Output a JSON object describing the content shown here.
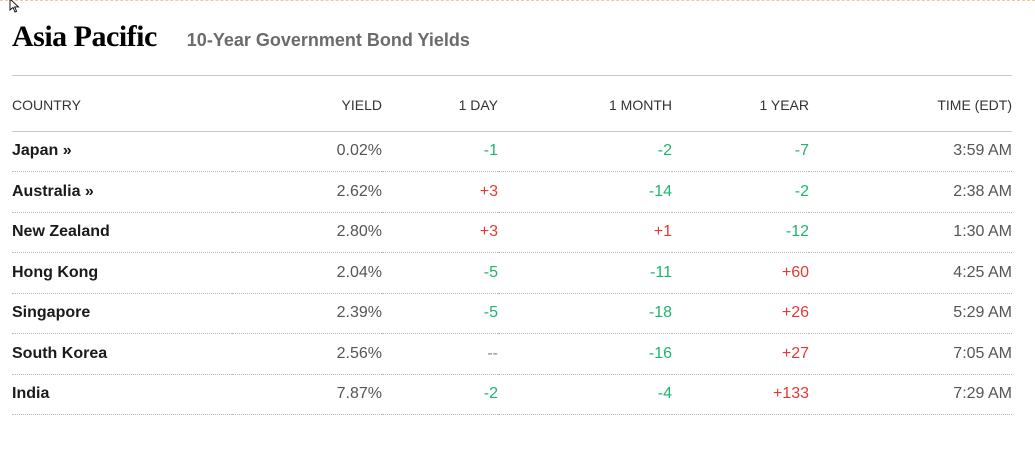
{
  "header": {
    "title": "Asia Pacific",
    "subtitle": "10-Year Government Bond Yields"
  },
  "table": {
    "columns": [
      "COUNTRY",
      "YIELD",
      "1 DAY",
      "1 MONTH",
      "1 YEAR",
      "TIME (EDT)"
    ],
    "rows": [
      {
        "country": "Japan »",
        "yield": "0.02%",
        "day": "-1",
        "month": "-2",
        "year": "-7",
        "time": "3:59 AM"
      },
      {
        "country": "Australia »",
        "yield": "2.62%",
        "day": "+3",
        "month": "-14",
        "year": "-2",
        "time": "2:38 AM"
      },
      {
        "country": "New Zealand",
        "yield": "2.80%",
        "day": "+3",
        "month": "+1",
        "year": "-12",
        "time": "1:30 AM"
      },
      {
        "country": "Hong Kong",
        "yield": "2.04%",
        "day": "-5",
        "month": "-11",
        "year": "+60",
        "time": "4:25 AM"
      },
      {
        "country": "Singapore",
        "yield": "2.39%",
        "day": "-5",
        "month": "-18",
        "year": "+26",
        "time": "5:29 AM"
      },
      {
        "country": "South Korea",
        "yield": "2.56%",
        "day": "--",
        "month": "-16",
        "year": "+27",
        "time": "7:05 AM"
      },
      {
        "country": "India",
        "yield": "7.87%",
        "day": "-2",
        "month": "-4",
        "year": "+133",
        "time": "7:29 AM"
      }
    ]
  },
  "colors": {
    "negative": "#1fb56e",
    "positive": "#e53935",
    "accent_rule": "#f2c79a"
  }
}
